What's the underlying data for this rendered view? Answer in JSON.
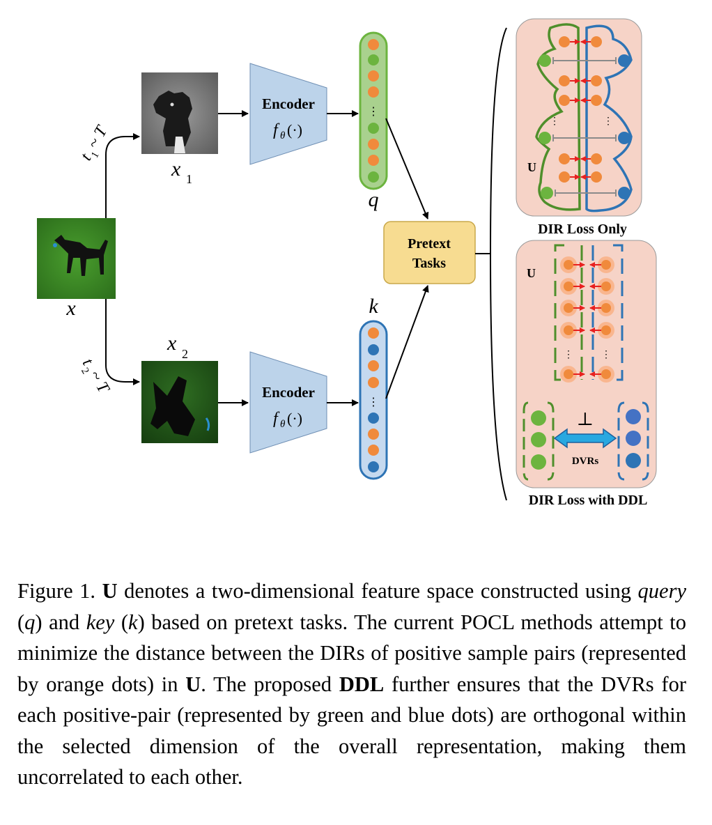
{
  "figure": {
    "inputs": {
      "x_label": "x",
      "x1_label": "x",
      "x1_sub": "1",
      "x2_label": "x",
      "x2_sub": "2",
      "t1_label": "t",
      "t1_sub": "1",
      "t1_dist": "~ T",
      "t2_label": "t",
      "t2_sub": "2",
      "t2_dist": "~ T"
    },
    "encoder_top": {
      "title": "Encoder",
      "func": "f",
      "func_sub": "θ",
      "func_arg": "(·)"
    },
    "encoder_bottom": {
      "title": "Encoder",
      "func": "f",
      "func_sub": "θ",
      "func_arg": "(·)"
    },
    "query_label": "q",
    "key_label": "k",
    "pretext": {
      "line1": "Pretext",
      "line2": "Tasks"
    },
    "panel_top": {
      "u_label": "U",
      "caption": "DIR Loss Only"
    },
    "panel_bottom": {
      "u_label": "U",
      "caption": "DIR Loss with DDL",
      "perp": "⊥",
      "dvrs": "DVRs"
    },
    "ellipsis": "⋮",
    "colors": {
      "green": "#6cb43f",
      "orange": "#f08a3c",
      "blue": "#2e74b5",
      "encoder_fill": "#bcd3ea",
      "pretext_fill": "#f7dc91",
      "panel_fill": "#f6d3c7",
      "red_arrow": "#e8201f",
      "double_arrow": "#29a8e0"
    }
  },
  "caption": {
    "label": "Figure 1.",
    "u_bold": "U",
    "s1": " denotes a two-dimensional feature space constructed using ",
    "query_word": "query",
    "s2": " (",
    "q": "q",
    "s3": ") and ",
    "key_word": "key",
    "s4": " (",
    "k": "k",
    "s5": ") based on pretext tasks.  The current POCL methods attempt to minimize the distance between the DIRs of positive sample pairs (represented by orange dots) in ",
    "u_bold2": "U",
    "s6": ". The proposed ",
    "ddl_bold": "DDL",
    "s7": " further ensures that the DVRs for each positive-pair (represented by green and blue dots) are orthogonal within the selected dimension of the overall representation, making them uncorrelated to each other."
  }
}
